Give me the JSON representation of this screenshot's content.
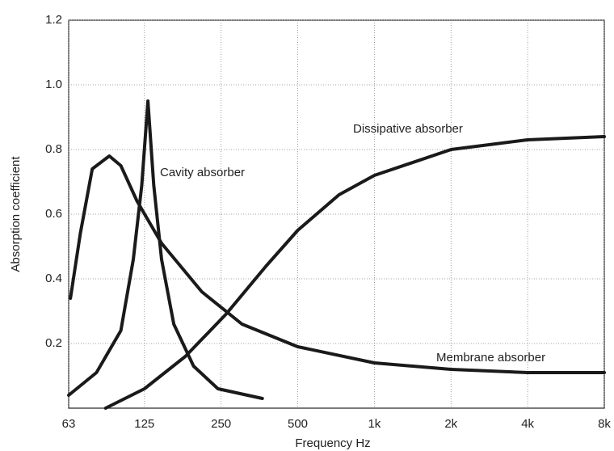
{
  "chart_data": {
    "type": "line",
    "x_label": "Frequency Hz",
    "y_label": "Absorption coefficient",
    "xscale": "log",
    "xlim": [
      63,
      8000
    ],
    "xticks": [
      63,
      125,
      250,
      500,
      {
        "value": 1000,
        "label": "1k"
      },
      {
        "value": 2000,
        "label": "2k"
      },
      {
        "value": 4000,
        "label": "4k"
      },
      {
        "value": 8000,
        "label": "8k"
      }
    ],
    "ylim": [
      0,
      1.2
    ],
    "yticks": [
      0.2,
      0.4,
      0.6,
      0.8,
      {
        "value": 1,
        "label": "1.0"
      },
      1.2
    ],
    "grid": true,
    "series": [
      {
        "name": "Cavity absorber",
        "color": "#1a1a1a",
        "x": [
          63,
          81,
          101,
          113,
          122,
          129,
          136,
          146,
          163,
          195,
          243,
          363
        ],
        "values": [
          0.04,
          0.11,
          0.24,
          0.46,
          0.69,
          0.95,
          0.69,
          0.46,
          0.26,
          0.13,
          0.06,
          0.03
        ]
      },
      {
        "name": "Dissipative absorber",
        "color": "#1a1a1a",
        "x": [
          88,
          125,
          181,
          261,
          376,
          500,
          726,
          1000,
          2000,
          4000,
          8000
        ],
        "values": [
          0,
          0.06,
          0.16,
          0.29,
          0.44,
          0.55,
          0.66,
          0.72,
          0.8,
          0.83,
          0.84
        ]
      },
      {
        "name": "Membrane absorber",
        "color": "#1a1a1a",
        "x": [
          64,
          70,
          78,
          91,
          101,
          117,
          146,
          210,
          302,
          500,
          1000,
          2000,
          4000,
          8000
        ],
        "values": [
          0.34,
          0.54,
          0.74,
          0.78,
          0.75,
          0.64,
          0.51,
          0.36,
          0.26,
          0.19,
          0.14,
          0.12,
          0.11,
          0.11
        ]
      }
    ]
  }
}
